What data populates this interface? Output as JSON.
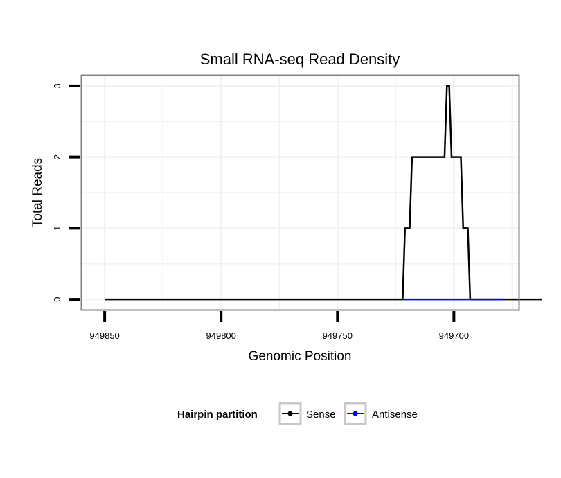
{
  "chart_data": {
    "type": "line",
    "title": "Small RNA-seq Read Density",
    "xlabel": "Genomic Position",
    "ylabel": "Total Reads",
    "x_reversed": true,
    "xlim": [
      949860,
      949672
    ],
    "ylim": [
      -0.15,
      3.15
    ],
    "x_ticks": [
      949850,
      949800,
      949750,
      949700
    ],
    "x_tick_labels": [
      "949850",
      "949800",
      "949750",
      "949700"
    ],
    "y_ticks": [
      0,
      1,
      2,
      3
    ],
    "y_tick_labels": [
      "0",
      "1",
      "2",
      "3"
    ],
    "grid": true,
    "legend": {
      "title": "Hairpin partition",
      "position": "bottom",
      "entries": [
        {
          "name": "Sense",
          "color": "#000000"
        },
        {
          "name": "Antisense",
          "color": "#0000ff"
        }
      ]
    },
    "series": [
      {
        "name": "Sense",
        "color": "#000000",
        "x": [
          949850,
          949722,
          949721,
          949719,
          949718,
          949704,
          949703,
          949702,
          949701,
          949697,
          949696,
          949694,
          949693,
          949679,
          949678,
          949662
        ],
        "y": [
          0,
          0,
          1,
          1,
          2,
          2,
          3,
          3,
          2,
          2,
          1,
          1,
          0,
          0,
          0,
          0
        ]
      },
      {
        "name": "Antisense",
        "color": "#0000ff",
        "x": [
          949722,
          949679
        ],
        "y": [
          0,
          0
        ]
      }
    ]
  }
}
